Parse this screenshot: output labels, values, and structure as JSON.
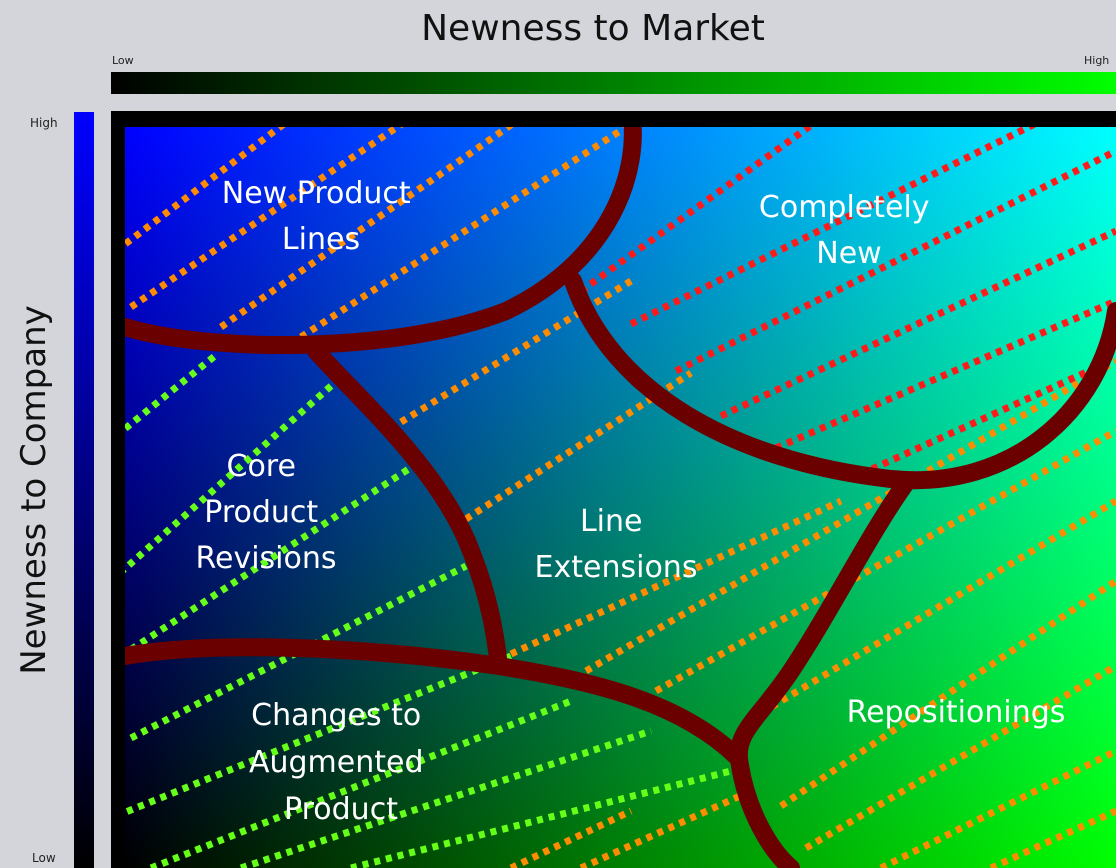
{
  "title": "Newness to Market",
  "x_axis": {
    "low": "Low",
    "high": "High"
  },
  "y_axis": {
    "title": "Newness to Company",
    "high": "High",
    "low": "Low"
  },
  "regions": {
    "new_product_lines": [
      "New Product",
      "Lines"
    ],
    "completely_new": [
      "Completely",
      "New"
    ],
    "core_product_revisions": [
      "Core",
      "Product",
      "Revisions"
    ],
    "line_extensions": [
      "Line",
      "Extensions"
    ],
    "changes_augmented": [
      "Changes to",
      "Augmented",
      "Product"
    ],
    "repositionings": [
      "Repositionings"
    ]
  },
  "colors": {
    "market_gradient": [
      "#000000",
      "#00ff00"
    ],
    "company_gradient": [
      "#0000ff",
      "#000000"
    ],
    "boundary": "#6b0000",
    "hatch_orange": "#ff8c00",
    "hatch_red": "#ff1a1a",
    "hatch_green": "#66ff1a"
  }
}
